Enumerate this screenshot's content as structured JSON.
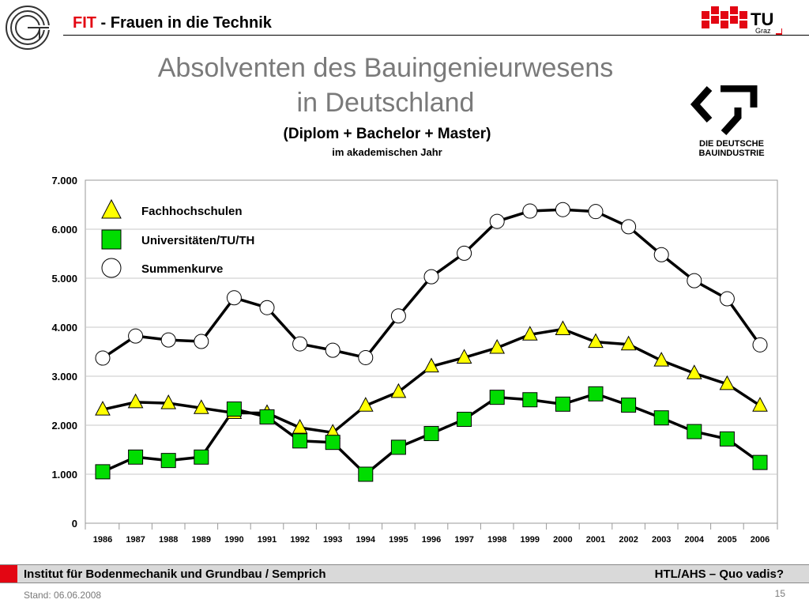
{
  "header": {
    "fit": "FIT",
    "title_rest": " - Frauen in die Technik",
    "tu_logo": "TU",
    "tu_sub": "Graz"
  },
  "slide": {
    "title_line1": "Absolventen des Bauingenieurwesens",
    "title_line2": "in Deutschland"
  },
  "bau_logo": {
    "line1": "DIE DEUTSCHE",
    "line2": "BAUINDUSTRIE"
  },
  "footer": {
    "left": "Institut für Bodenmechanik und Grundbau / Semprich",
    "right": "HTL/AHS – Quo vadis?",
    "stand": "Stand: 06.06.2008",
    "page": "15"
  },
  "colors": {
    "accent_red": "#e30613",
    "fh_marker": "#ffff00",
    "uni_marker": "#00dd00",
    "sum_marker": "#ffffff",
    "title_gray": "#7a7a7a"
  },
  "chart_data": {
    "type": "line",
    "title": "(Diplom + Bachelor + Master)",
    "subtitle": "im akademischen Jahr",
    "xlabel": "",
    "ylabel": "",
    "ylim": [
      0,
      7000
    ],
    "yticks": [
      "0",
      "1.000",
      "2.000",
      "3.000",
      "4.000",
      "5.000",
      "6.000",
      "7.000"
    ],
    "grid": true,
    "legend_position": "top-left",
    "categories": [
      "1986",
      "1987",
      "1988",
      "1989",
      "1990",
      "1991",
      "1992",
      "1993",
      "1994",
      "1995",
      "1996",
      "1997",
      "1998",
      "1999",
      "2000",
      "2001",
      "2002",
      "2003",
      "2004",
      "2005",
      "2006"
    ],
    "series": [
      {
        "name": "Fachhochschulen",
        "marker": "triangle",
        "values": [
          2320,
          2470,
          2450,
          2350,
          2250,
          2250,
          1950,
          1850,
          2400,
          2680,
          3200,
          3380,
          3580,
          3850,
          3960,
          3700,
          3650,
          3320,
          3060,
          2840,
          2400
        ]
      },
      {
        "name": "Universitäten/TU/TH",
        "marker": "square",
        "values": [
          1050,
          1350,
          1280,
          1350,
          2330,
          2170,
          1680,
          1650,
          1000,
          1550,
          1830,
          2120,
          2570,
          2520,
          2430,
          2640,
          2410,
          2150,
          1870,
          1720,
          1240
        ]
      },
      {
        "name": "Summenkurve",
        "marker": "circle",
        "values": [
          3370,
          3820,
          3740,
          3710,
          4600,
          4400,
          3660,
          3530,
          3380,
          4230,
          5030,
          5510,
          6160,
          6370,
          6400,
          6360,
          6050,
          5480,
          4950,
          4580,
          3640
        ]
      }
    ]
  }
}
